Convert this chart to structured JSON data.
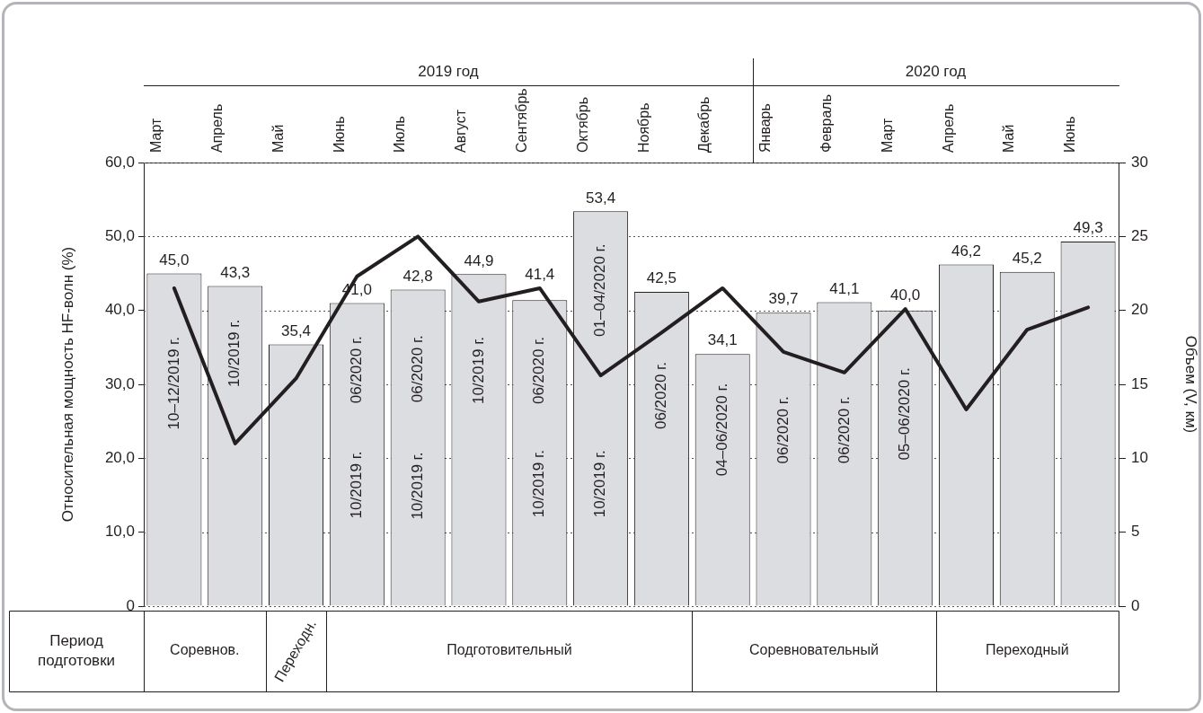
{
  "chart_data": {
    "type": "bar",
    "categories": [
      "Март",
      "Апрель",
      "Май",
      "Июнь",
      "Июль",
      "Август",
      "Сентябрь",
      "Октябрь",
      "Ноябрь",
      "Декабрь",
      "Январь",
      "Февраль",
      "Март",
      "Апрель",
      "Май",
      "Июнь"
    ],
    "series": [
      {
        "color": "#dcdde0",
        "values": [
          45.0,
          43.3,
          35.4,
          41.0,
          42.8,
          44.9,
          41.4,
          53.4,
          42.5,
          34.1,
          39.7,
          41.1,
          40.0,
          46.2,
          45.2,
          49.3
        ],
        "value_labels": [
          "45,0",
          "43,3",
          "35,4",
          "41,0",
          "42,8",
          "44,9",
          "41,4",
          "53,4",
          "42,5",
          "34,1",
          "39,7",
          "41,1",
          "40,0",
          "46,2",
          "45,2",
          "49,3"
        ]
      },
      {
        "type": "line",
        "axis": "y2",
        "color": "#231f20",
        "values": [
          21.5,
          11.0,
          15.4,
          22.3,
          25.0,
          20.6,
          21.5,
          15.6,
          18.5,
          21.5,
          17.2,
          15.8,
          20.1,
          13.3,
          18.7,
          20.2
        ]
      }
    ],
    "ylabel": "Относительная мощность HF-волн (%)",
    "y2label": "Объем (V, км)",
    "ylim": [
      0,
      60
    ],
    "yticks": [
      0,
      {
        "value": 10,
        "label": "10,0"
      },
      {
        "value": 20,
        "label": "20,0"
      },
      {
        "value": 30,
        "label": "30,0"
      },
      {
        "value": 40,
        "label": "40,0"
      },
      {
        "value": 50,
        "label": "50,0"
      },
      {
        "value": 60,
        "label": "60,0"
      }
    ],
    "y2lim": [
      0,
      30
    ],
    "y2ticks": [
      0,
      5,
      10,
      15,
      20,
      25,
      30
    ],
    "grid": "y",
    "legend": false,
    "marker": "none",
    "line_style": "solid",
    "annotations": [
      "10–12/2019 г.",
      "10/2019 г.",
      "06/2020 г.",
      "10/2019 г.",
      "06/2020 г.",
      "10/2019 г.",
      "10/2019 г.",
      "06/2020 г.",
      "10/2019 г.",
      "01–04/2020 г.",
      "10/2019 г.",
      "06/2020 г.",
      "04–06/2020 г.",
      "06/2020 г.",
      "06/2020 г.",
      "05–06/2020 г.",
      "2019 год",
      "2020 год",
      "Период подготовки",
      "Соревнов.",
      "Переходн.",
      "Подготовительный",
      "Соревновательный",
      "Переходный"
    ]
  }
}
